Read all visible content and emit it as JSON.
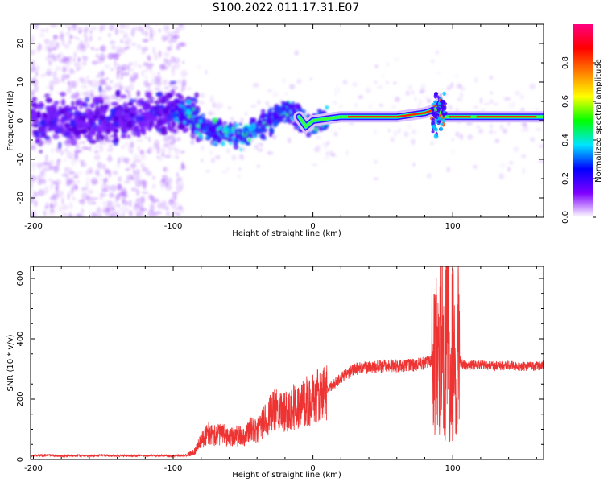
{
  "page": {
    "title": "S100.2022.011.17.31.E07"
  },
  "chart_data": [
    {
      "type": "heatmap",
      "xlabel": "Height of straight line (km)",
      "ylabel": "Frequency (Hz)",
      "xlim": [
        -202,
        165
      ],
      "ylim": [
        -25,
        25
      ],
      "x_ticks": [
        -200,
        -100,
        0,
        100
      ],
      "y_ticks": [
        -20,
        -10,
        0,
        10,
        20
      ],
      "colorbar": {
        "label": "Normalized spectral amplitude",
        "range": [
          0,
          1
        ],
        "ticks": [
          "0.0",
          "0.2",
          "0.4",
          "0.6",
          "0.8"
        ],
        "colormap": [
          "#ffffff",
          "#7f00ff",
          "#0000ff",
          "#00e5ff",
          "#00ff00",
          "#ffff00",
          "#ff7f00",
          "#ff0000",
          "#ff0080"
        ]
      },
      "ridge": {
        "x": [
          -200,
          -180,
          -160,
          -140,
          -120,
          -100,
          -90,
          -80,
          -70,
          -60,
          -50,
          -45,
          -40,
          -35,
          -30,
          -25,
          -20,
          -15,
          -10,
          -5,
          0,
          10,
          20,
          40,
          60,
          70,
          80,
          88,
          90,
          92,
          95,
          100,
          110,
          120,
          140,
          160,
          165
        ],
        "freq": [
          0,
          0,
          0,
          0.5,
          1,
          2,
          2,
          -1,
          -3,
          -3.5,
          -3.5,
          -3,
          -2,
          -1,
          0,
          1.5,
          2.5,
          3,
          1,
          -1.5,
          0,
          0.5,
          1,
          1,
          1,
          1.5,
          2,
          3,
          4,
          1,
          1,
          1,
          1,
          1,
          1,
          1,
          1
        ]
      }
    },
    {
      "type": "line",
      "xlabel": "Height of straight line (km)",
      "ylabel": "SNR (10 * v/v)",
      "xlim": [
        -202,
        165
      ],
      "ylim": [
        0,
        640
      ],
      "x_ticks": [
        -200,
        -100,
        0,
        100
      ],
      "y_ticks": [
        0,
        200,
        400,
        600
      ],
      "color": "#ee3333",
      "series": [
        {
          "x": [
            -202,
            -190,
            -180,
            -170,
            -160,
            -150,
            -140,
            -130,
            -120,
            -110,
            -100,
            -90,
            -85,
            -80,
            -75,
            -70,
            -65,
            -60,
            -55,
            -50,
            -45,
            -40,
            -35,
            -30,
            -25,
            -20,
            -15,
            -10,
            -5,
            0,
            5,
            10,
            15,
            20,
            25,
            30,
            40,
            50,
            60,
            70,
            75,
            80,
            85,
            88,
            90,
            92,
            94,
            96,
            98,
            100,
            102,
            104,
            106,
            110,
            120,
            130,
            140,
            150,
            160,
            165
          ],
          "y": [
            12,
            14,
            12,
            13,
            12,
            14,
            12,
            13,
            12,
            13,
            12,
            14,
            25,
            60,
            90,
            80,
            85,
            70,
            80,
            75,
            100,
            90,
            130,
            150,
            170,
            160,
            180,
            170,
            190,
            200,
            210,
            230,
            250,
            270,
            285,
            300,
            305,
            310,
            310,
            312,
            315,
            320,
            330,
            300,
            280,
            520,
            100,
            600,
            150,
            400,
            200,
            340,
            320,
            310,
            315,
            310,
            312,
            308,
            310,
            312
          ]
        }
      ]
    }
  ]
}
